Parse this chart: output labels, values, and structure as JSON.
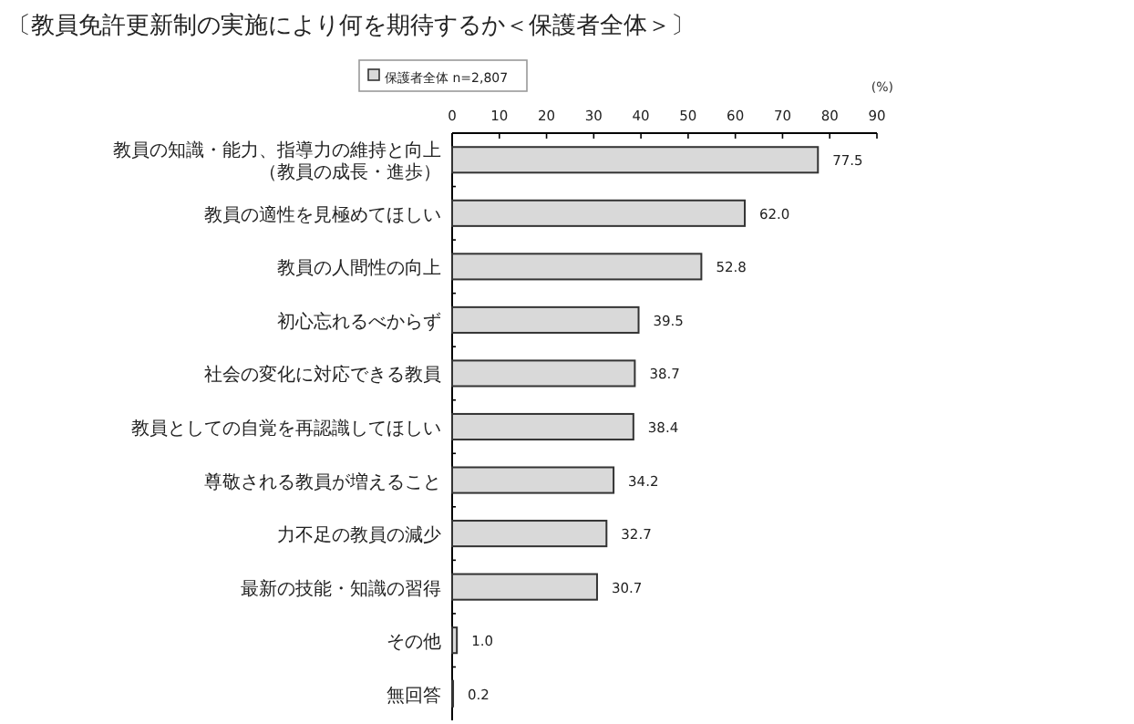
{
  "chart_data": {
    "type": "bar",
    "orientation": "horizontal",
    "title": "〔教員免許更新制の実施により何を期待するか＜保護者全体＞〕",
    "xlabel": "(%)",
    "categories": [
      "教員の知識・能力、指導力の維持と向上（教員の成長・進歩）",
      "教員の適性を見極めてほしい",
      "教員の人間性の向上",
      "初心忘れるべからず",
      "社会の変化に対応できる教員",
      "教員としての自覚を再認識してほしい",
      "尊敬される教員が増えること",
      "力不足の教員の減少",
      "最新の技能・知識の習得",
      "その他",
      "無回答"
    ],
    "series": [
      {
        "name": "保護者全体 n=2,807",
        "color": "#d9d9d9",
        "values": [
          77.5,
          62.0,
          52.8,
          39.5,
          38.7,
          38.4,
          34.2,
          32.7,
          30.7,
          1.0,
          0.2
        ],
        "value_labels": [
          "77.5",
          "62.0",
          "52.8",
          "39.5",
          "38.7",
          "38.4",
          "34.2",
          "32.7",
          "30.7",
          "1.0",
          "0.2"
        ]
      }
    ],
    "xlim": [
      0,
      90
    ],
    "xticks": [
      0,
      10,
      20,
      30,
      40,
      50,
      60,
      70,
      80,
      90
    ],
    "legend": "top"
  }
}
